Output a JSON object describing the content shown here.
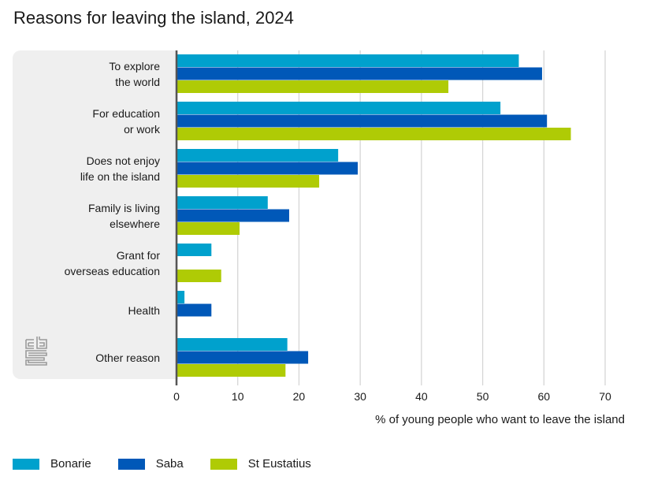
{
  "chart_data": {
    "type": "bar",
    "orientation": "horizontal",
    "title": "Reasons for leaving the island, 2024",
    "xlabel": "% of young people who want to leave the island",
    "ylabel": "",
    "xlim": [
      0,
      70
    ],
    "xticks": [
      0,
      10,
      20,
      30,
      40,
      50,
      60,
      70
    ],
    "grid": true,
    "legend_position": "bottom-left",
    "categories": [
      [
        "To explore",
        "the world"
      ],
      [
        "For education",
        "or work"
      ],
      [
        "Does not enjoy",
        "life on the island"
      ],
      [
        "Family is living",
        "elsewhere"
      ],
      [
        "Grant for",
        "overseas education"
      ],
      [
        "Health"
      ],
      [
        "Other reason"
      ]
    ],
    "series": [
      {
        "name": "Bonarie",
        "color": "#00a1cd",
        "values": [
          55.9,
          52.9,
          26.4,
          14.9,
          5.7,
          1.3,
          18.1
        ]
      },
      {
        "name": "Saba",
        "color": "#0058b8",
        "values": [
          59.7,
          60.5,
          29.6,
          18.4,
          null,
          5.7,
          21.5
        ]
      },
      {
        "name": "St Eustatius",
        "color": "#afcb05",
        "values": [
          44.4,
          64.4,
          23.3,
          10.3,
          7.3,
          null,
          17.8
        ]
      }
    ]
  },
  "logo": "cbs-logo"
}
